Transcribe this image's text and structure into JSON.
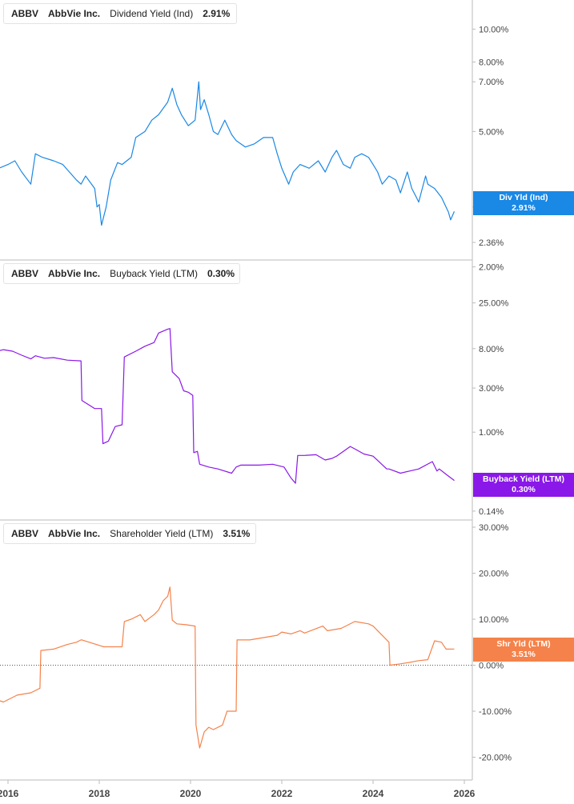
{
  "colors": {
    "dividend": "#1a88e5",
    "buyback": "#8a18e8",
    "shareholder": "#f5824a",
    "axis": "#bbbbbb",
    "tick_text": "#444444"
  },
  "x_axis": {
    "ticks": [
      "2016",
      "2018",
      "2020",
      "2022",
      "2024",
      "2026"
    ],
    "range": [
      2016.0,
      2026.0
    ]
  },
  "legends": [
    {
      "ticker": "ABBV",
      "name": "AbbVie Inc.",
      "metric": "Dividend Yield (Ind)",
      "value": "2.91%"
    },
    {
      "ticker": "ABBV",
      "name": "AbbVie Inc.",
      "metric": "Buyback Yield (LTM)",
      "value": "0.30%"
    },
    {
      "ticker": "ABBV",
      "name": "AbbVie Inc.",
      "metric": "Shareholder Yield (LTM)",
      "value": "3.51%"
    }
  ],
  "end_tags": [
    {
      "label": "Div Yld (Ind)",
      "value": "2.91%"
    },
    {
      "label": "Buyback Yield (LTM)",
      "value": "0.30%"
    },
    {
      "label": "Shr Yld (LTM)",
      "value": "3.51%"
    }
  ],
  "chart_data": [
    {
      "type": "line",
      "title": "",
      "series": [
        {
          "name": "Dividend Yield (Ind)",
          "x": [
            2015.6,
            2015.8,
            2016.0,
            2016.15,
            2016.3,
            2016.5,
            2016.6,
            2016.75,
            2017.0,
            2017.2,
            2017.5,
            2017.6,
            2017.7,
            2017.9,
            2017.95,
            2018.0,
            2018.05,
            2018.15,
            2018.25,
            2018.4,
            2018.5,
            2018.7,
            2018.8,
            2019.0,
            2019.15,
            2019.3,
            2019.5,
            2019.6,
            2019.7,
            2019.8,
            2019.95,
            2020.1,
            2020.18,
            2020.22,
            2020.3,
            2020.4,
            2020.5,
            2020.6,
            2020.75,
            2020.9,
            2021.0,
            2021.2,
            2021.4,
            2021.6,
            2021.8,
            2021.9,
            2022.0,
            2022.15,
            2022.25,
            2022.4,
            2022.6,
            2022.8,
            2022.95,
            2023.1,
            2023.2,
            2023.35,
            2023.5,
            2023.6,
            2023.75,
            2023.9,
            2024.0,
            2024.1,
            2024.2,
            2024.35,
            2024.5,
            2024.6,
            2024.75,
            2024.85,
            2024.95,
            2025.0,
            2025.15,
            2025.2,
            2025.35,
            2025.5,
            2025.65,
            2025.7,
            2025.78
          ],
          "values": [
            4.1,
            3.9,
            4.0,
            4.1,
            3.8,
            3.5,
            4.3,
            4.2,
            4.1,
            4.0,
            3.6,
            3.5,
            3.7,
            3.4,
            3.0,
            3.05,
            2.65,
            3.0,
            3.6,
            4.05,
            4.0,
            4.2,
            4.8,
            5.0,
            5.4,
            5.6,
            6.1,
            6.7,
            6.0,
            5.6,
            5.2,
            5.4,
            7.0,
            5.8,
            6.2,
            5.6,
            5.0,
            4.9,
            5.4,
            4.9,
            4.7,
            4.5,
            4.6,
            4.8,
            4.8,
            4.3,
            3.9,
            3.5,
            3.8,
            4.0,
            3.9,
            4.1,
            3.8,
            4.2,
            4.4,
            4.0,
            3.9,
            4.2,
            4.3,
            4.2,
            4.0,
            3.8,
            3.5,
            3.7,
            3.6,
            3.3,
            3.8,
            3.4,
            3.2,
            3.1,
            3.7,
            3.5,
            3.4,
            3.2,
            2.9,
            2.75,
            2.91
          ]
        }
      ],
      "y_ticks": [
        "10.00%",
        "8.00%",
        "7.00%",
        "5.00%",
        "3.00",
        "2.36%",
        "2.00%"
      ],
      "y_scale": "log",
      "grid": false,
      "legend_position": "top-left"
    },
    {
      "type": "line",
      "title": "",
      "series": [
        {
          "name": "Buyback Yield (LTM)",
          "x": [
            2015.6,
            2015.9,
            2016.1,
            2016.3,
            2016.5,
            2016.6,
            2016.8,
            2017.0,
            2017.3,
            2017.6,
            2017.62,
            2017.9,
            2018.05,
            2018.08,
            2018.2,
            2018.35,
            2018.5,
            2018.55,
            2018.8,
            2019.0,
            2019.2,
            2019.3,
            2019.5,
            2019.55,
            2019.6,
            2019.75,
            2019.85,
            2019.95,
            2020.05,
            2020.07,
            2020.15,
            2020.2,
            2020.4,
            2020.6,
            2020.9,
            2021.0,
            2021.1,
            2021.5,
            2021.8,
            2022.05,
            2022.2,
            2022.3,
            2022.35,
            2022.5,
            2022.75,
            2022.95,
            2023.1,
            2023.2,
            2023.5,
            2023.6,
            2023.8,
            2024.0,
            2024.3,
            2024.35,
            2024.6,
            2024.8,
            2025.0,
            2025.3,
            2025.4,
            2025.45,
            2025.6,
            2025.78
          ],
          "values": [
            7.2,
            7.8,
            7.5,
            6.8,
            6.2,
            6.7,
            6.3,
            6.4,
            6.0,
            5.9,
            2.2,
            1.8,
            1.8,
            0.75,
            0.8,
            1.15,
            1.2,
            6.5,
            7.5,
            8.5,
            9.3,
            11.8,
            13.0,
            13.2,
            4.5,
            3.8,
            2.8,
            2.7,
            2.5,
            0.6,
            0.62,
            0.45,
            0.42,
            0.4,
            0.36,
            0.42,
            0.44,
            0.44,
            0.45,
            0.42,
            0.32,
            0.28,
            0.56,
            0.56,
            0.57,
            0.5,
            0.52,
            0.55,
            0.7,
            0.66,
            0.58,
            0.55,
            0.4,
            0.4,
            0.36,
            0.38,
            0.4,
            0.48,
            0.38,
            0.4,
            0.35,
            0.3
          ]
        }
      ],
      "y_ticks": [
        "25.00%",
        "8.00%",
        "3.00%",
        "1.00%",
        "0.14%"
      ],
      "y_scale": "log",
      "grid": false,
      "legend_position": "top-left"
    },
    {
      "type": "line",
      "title": "",
      "series": [
        {
          "name": "Shareholder Yield (LTM)",
          "x": [
            2015.6,
            2015.9,
            2016.2,
            2016.5,
            2016.7,
            2016.72,
            2017.0,
            2017.3,
            2017.5,
            2017.6,
            2017.62,
            2018.1,
            2018.5,
            2018.55,
            2018.7,
            2018.9,
            2019.0,
            2019.2,
            2019.3,
            2019.4,
            2019.5,
            2019.55,
            2019.6,
            2019.7,
            2019.9,
            2020.1,
            2020.12,
            2020.2,
            2020.3,
            2020.4,
            2020.5,
            2020.7,
            2020.8,
            2021.0,
            2021.02,
            2021.3,
            2021.6,
            2021.9,
            2022.0,
            2022.2,
            2022.4,
            2022.5,
            2022.9,
            2023.0,
            2023.3,
            2023.6,
            2023.9,
            2024.0,
            2024.35,
            2024.37,
            2024.6,
            2024.8,
            2025.0,
            2025.2,
            2025.35,
            2025.5,
            2025.6,
            2025.78
          ],
          "values": [
            -7,
            -8,
            -6.5,
            -6,
            -5,
            3.2,
            3.5,
            4.5,
            5.0,
            5.5,
            5.5,
            4.0,
            4.0,
            9.5,
            10,
            11,
            9.5,
            11,
            12,
            14,
            15,
            17,
            9.8,
            9.0,
            8.8,
            8.5,
            -13,
            -18,
            -14.5,
            -13.5,
            -14,
            -13,
            -10,
            -10,
            5.5,
            5.5,
            6.0,
            6.5,
            7.2,
            6.8,
            7.5,
            7.0,
            8.5,
            7.5,
            8.0,
            9.5,
            9.0,
            8.5,
            5.0,
            0.0,
            0.3,
            0.6,
            1.0,
            1.2,
            5.3,
            5.0,
            3.5,
            3.51
          ]
        }
      ],
      "y_ticks": [
        "30.00%",
        "20.00%",
        "10.00%",
        "0.00%",
        "-10.00%",
        "-20.00%"
      ],
      "ylim": [
        -23.0,
        30.0
      ],
      "y_scale": "linear",
      "zero_line": "dotted",
      "grid": false,
      "legend_position": "top-left"
    }
  ]
}
